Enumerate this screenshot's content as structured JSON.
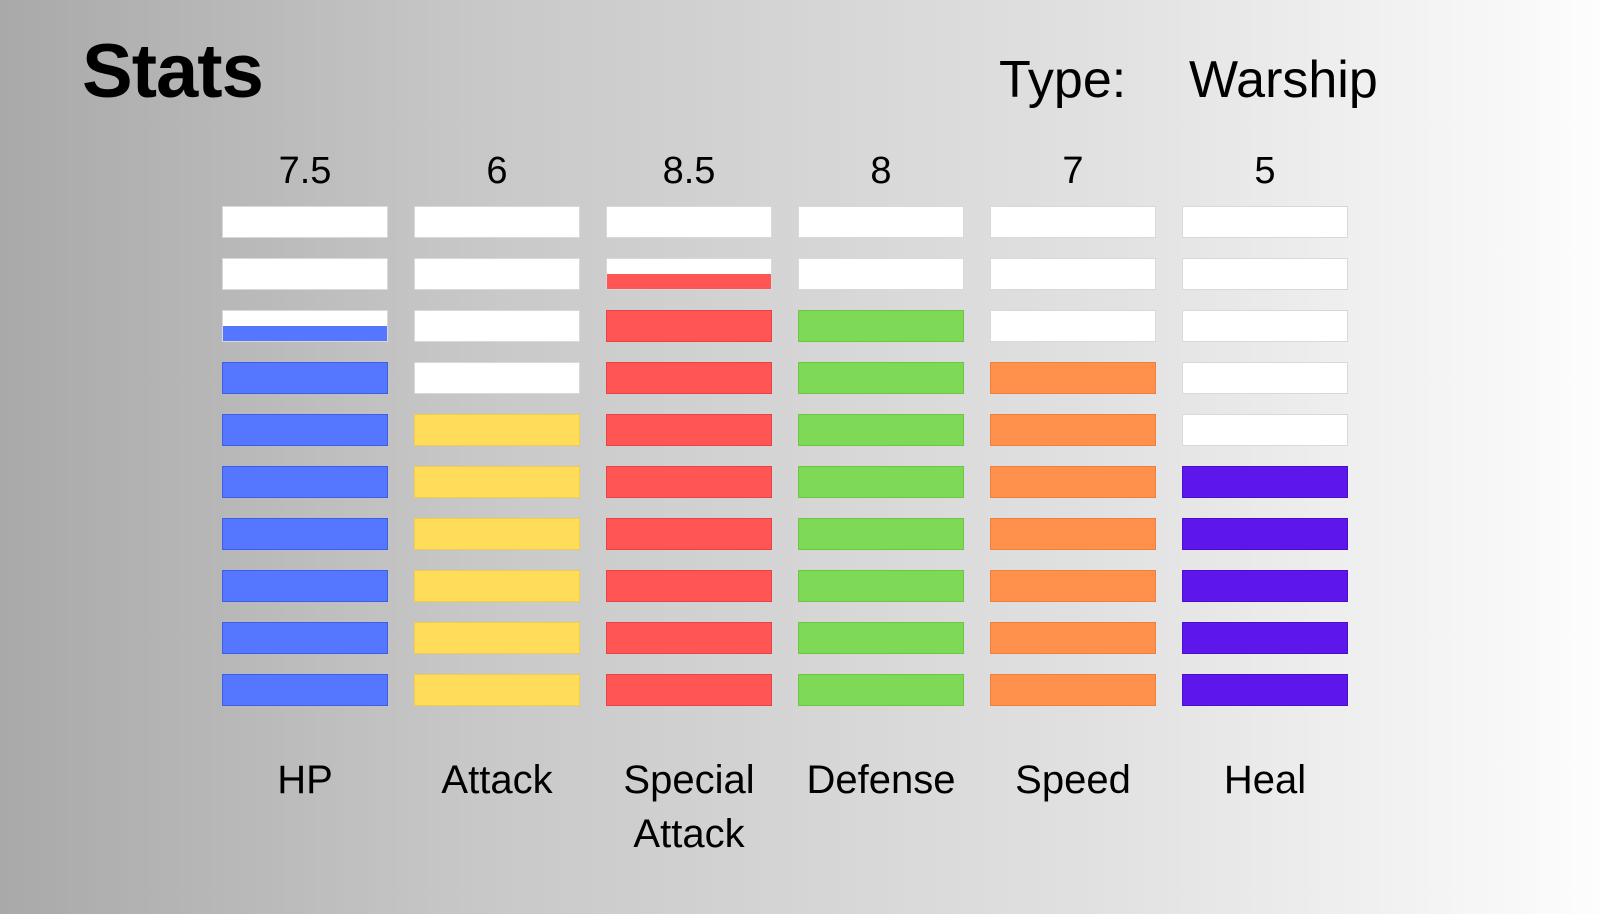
{
  "header": {
    "title": "Stats",
    "type_label": "Type:",
    "type_value": "Warship"
  },
  "stats": [
    {
      "name": "HP",
      "value": "7.5",
      "color": "#5577ff",
      "border": "#3d5ee8"
    },
    {
      "name": "Attack",
      "value": "6",
      "color": "#ffdd5a",
      "border": "#f0cc48"
    },
    {
      "name": "Special Attack",
      "value": "8.5",
      "color": "#ff5555",
      "border": "#e84242"
    },
    {
      "name": "Defense",
      "value": "8",
      "color": "#7ed957",
      "border": "#6cc646"
    },
    {
      "name": "Speed",
      "value": "7",
      "color": "#ff914d",
      "border": "#ef7f3c"
    },
    {
      "name": "Heal",
      "value": "5",
      "color": "#5e17eb",
      "border": "#4a0ed0"
    }
  ],
  "scale_max": 10
}
